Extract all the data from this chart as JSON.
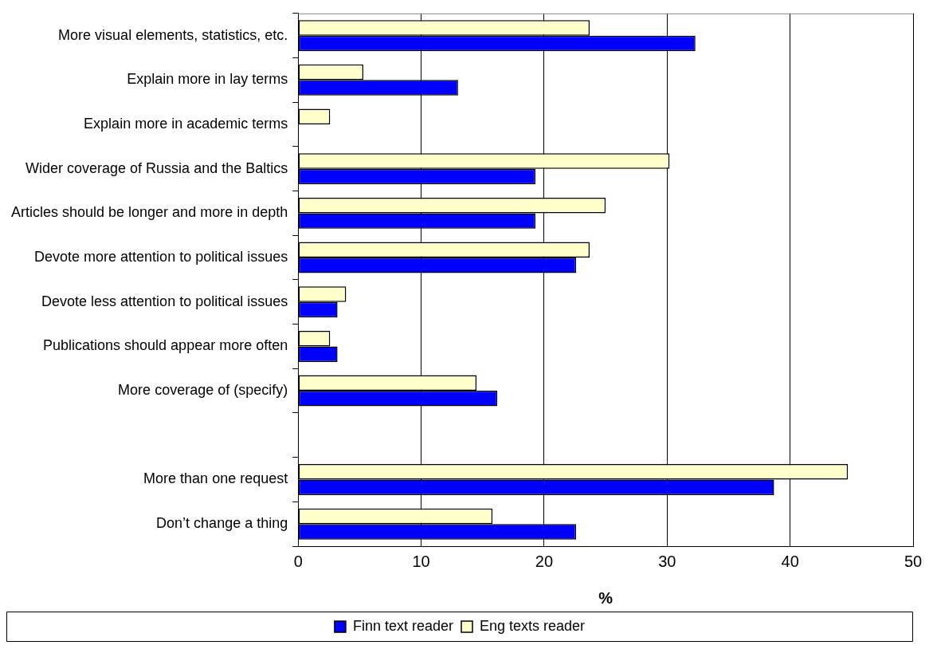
{
  "chart_data": {
    "type": "bar",
    "orientation": "horizontal",
    "xlabel": "%",
    "categories": [
      "More visual elements, statistics, etc.",
      "Explain more in lay terms",
      "Explain more in academic terms",
      "Wider coverage of Russia and the Baltics",
      "Articles should be longer and more in depth",
      "Devote more attention to political issues",
      "Devote less attention to political issues",
      "Publications should appear more often",
      "More coverage of (specify)",
      null,
      "More than one request",
      "Don’t change a thing"
    ],
    "series": [
      {
        "name": "Finn text reader",
        "color": "#0000ff",
        "values": [
          32.3,
          13.0,
          null,
          19.3,
          19.3,
          22.6,
          3.2,
          3.2,
          16.2,
          null,
          38.7,
          22.6
        ]
      },
      {
        "name": "Eng texts reader",
        "color": "#ffffcc",
        "values": [
          23.7,
          5.3,
          2.6,
          30.2,
          25.0,
          23.7,
          3.9,
          2.6,
          14.5,
          null,
          44.7,
          15.8
        ]
      }
    ],
    "xlim": [
      0,
      50
    ],
    "xticks": [
      0,
      10,
      20,
      30,
      40,
      50
    ],
    "grid": "x",
    "legend": "bottom"
  }
}
